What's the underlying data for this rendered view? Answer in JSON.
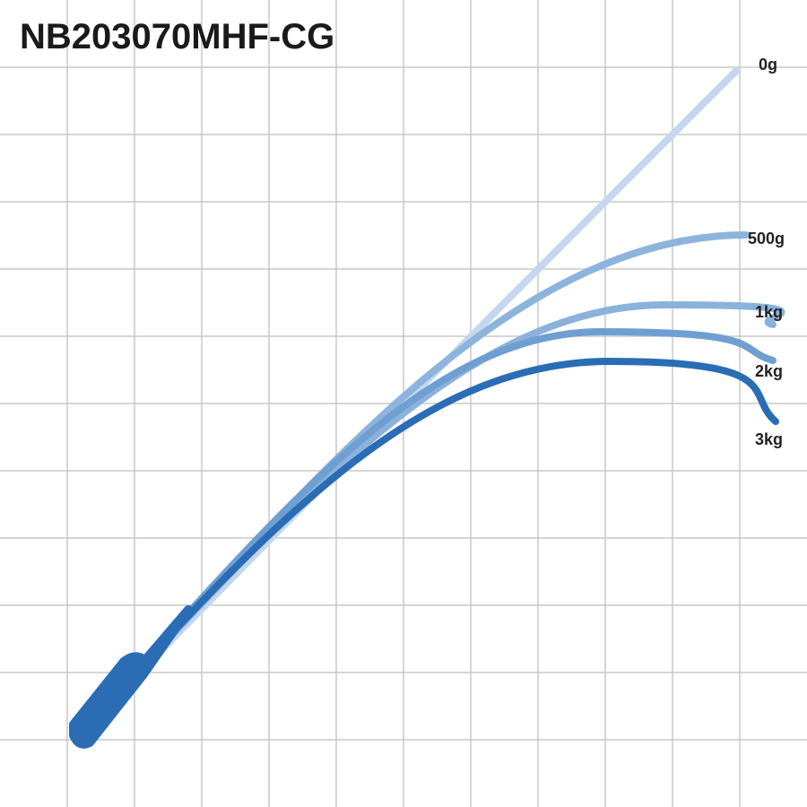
{
  "title": "NB203070MHF-CG",
  "curves": [
    {
      "label": "0g"
    },
    {
      "label": "500g"
    },
    {
      "label": "1kg"
    },
    {
      "label": "2kg"
    },
    {
      "label": "3kg"
    }
  ]
}
